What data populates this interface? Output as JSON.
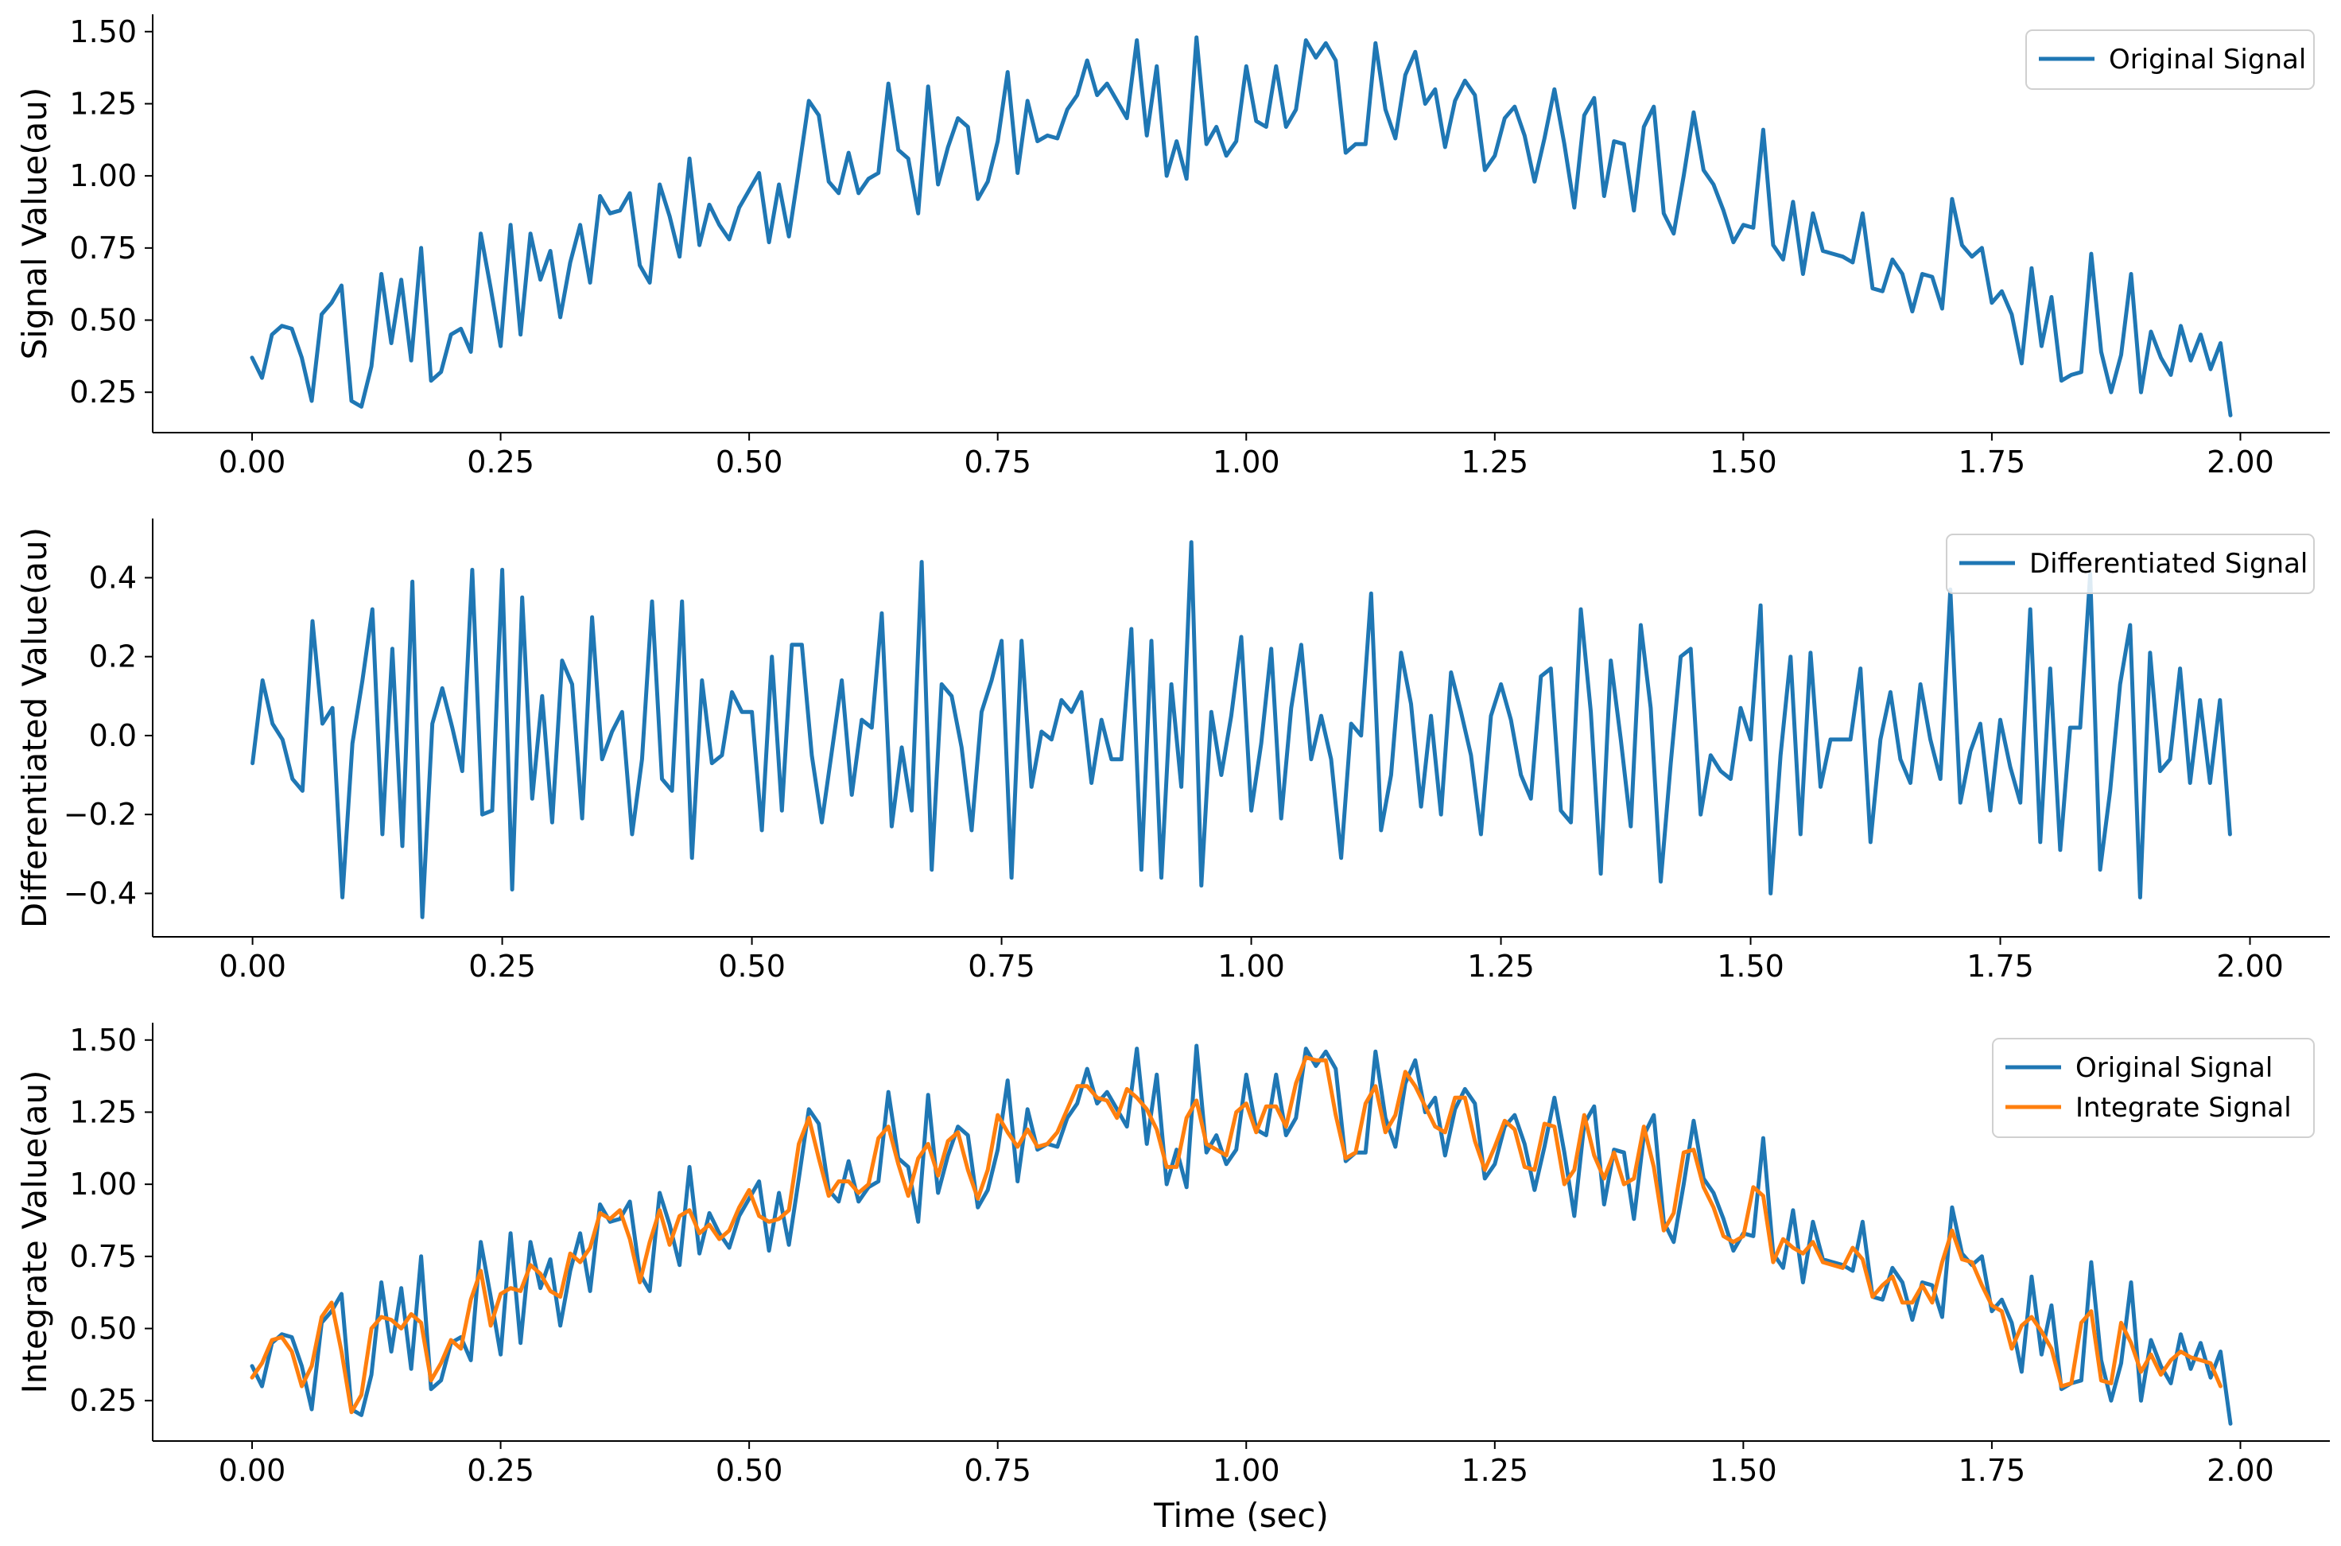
{
  "chart_data": [
    {
      "type": "line",
      "ylabel": "Signal Value(au)",
      "xlabel": "",
      "xlim": [
        -0.1,
        2.09
      ],
      "ylim": [
        0.11,
        1.56
      ],
      "xticks": [
        "0.00",
        "0.25",
        "0.50",
        "0.75",
        "1.00",
        "1.25",
        "1.50",
        "1.75",
        "2.00"
      ],
      "yticks": [
        "0.25",
        "0.50",
        "0.75",
        "1.00",
        "1.25",
        "1.50"
      ],
      "legend_position": "top-right",
      "series": [
        {
          "name": "Original Signal",
          "color": "#1f77b4",
          "dt": 0.01,
          "values": [
            0.37,
            0.3,
            0.45,
            0.48,
            0.47,
            0.37,
            0.22,
            0.52,
            0.56,
            0.62,
            0.22,
            0.2,
            0.34,
            0.66,
            0.42,
            0.64,
            0.36,
            0.75,
            0.29,
            0.32,
            0.45,
            0.47,
            0.39,
            0.8,
            0.61,
            0.41,
            0.83,
            0.45,
            0.8,
            0.64,
            0.74,
            0.51,
            0.7,
            0.83,
            0.63,
            0.93,
            0.87,
            0.88,
            0.94,
            0.69,
            0.63,
            0.97,
            0.86,
            0.72,
            1.06,
            0.76,
            0.9,
            0.83,
            0.78,
            0.89,
            0.95,
            1.01,
            0.77,
            0.97,
            0.79,
            1.02,
            1.26,
            1.21,
            0.98,
            0.94,
            1.08,
            0.94,
            0.99,
            1.01,
            1.32,
            1.09,
            1.06,
            0.87,
            1.31,
            0.97,
            1.1,
            1.2,
            1.17,
            0.92,
            0.98,
            1.12,
            1.36,
            1.01,
            1.26,
            1.12,
            1.14,
            1.13,
            1.23,
            1.28,
            1.4,
            1.28,
            1.32,
            1.26,
            1.2,
            1.47,
            1.14,
            1.38,
            1.0,
            1.12,
            0.99,
            1.48,
            1.11,
            1.17,
            1.07,
            1.12,
            1.38,
            1.19,
            1.17,
            1.38,
            1.17,
            1.23,
            1.47,
            1.41,
            1.46,
            1.4,
            1.08,
            1.11,
            1.11,
            1.46,
            1.23,
            1.13,
            1.35,
            1.43,
            1.25,
            1.3,
            1.1,
            1.26,
            1.33,
            1.28,
            1.02,
            1.07,
            1.2,
            1.24,
            1.14,
            0.98,
            1.13,
            1.3,
            1.11,
            0.89,
            1.21,
            1.27,
            0.93,
            1.12,
            1.11,
            0.88,
            1.17,
            1.24,
            0.87,
            0.8,
            1.0,
            1.22,
            1.02,
            0.97,
            0.88,
            0.77,
            0.83,
            0.82,
            1.16,
            0.76,
            0.71,
            0.91,
            0.66,
            0.87,
            0.74,
            0.73,
            0.72,
            0.7,
            0.87,
            0.61,
            0.6,
            0.71,
            0.66,
            0.53,
            0.66,
            0.65,
            0.54,
            0.92,
            0.76,
            0.72,
            0.75,
            0.56,
            0.6,
            0.52,
            0.35,
            0.68,
            0.41,
            0.58,
            0.29,
            0.31,
            0.32,
            0.73,
            0.39,
            0.25,
            0.38,
            0.66,
            0.25,
            0.46,
            0.37,
            0.31,
            0.48,
            0.36,
            0.45,
            0.33,
            0.42,
            0.17
          ]
        }
      ]
    },
    {
      "type": "line",
      "ylabel": "Differentiated Value(au)",
      "xlabel": "",
      "xlim": [
        -0.1,
        2.08
      ],
      "ylim": [
        -0.51,
        0.55
      ],
      "xticks": [
        "0.00",
        "0.25",
        "0.50",
        "0.75",
        "1.00",
        "1.25",
        "1.50",
        "1.75",
        "2.00"
      ],
      "yticks": [
        "−0.4",
        "−0.2",
        "0.0",
        "0.2",
        "0.4"
      ],
      "legend_position": "top-right",
      "series": [
        {
          "name": "Differentiated Signal",
          "color": "#1f77b4",
          "dt": 0.01,
          "values": [
            -0.07,
            0.14,
            0.03,
            -0.01,
            -0.11,
            -0.14,
            0.29,
            0.03,
            0.07,
            -0.41,
            -0.02,
            0.14,
            0.32,
            -0.25,
            0.22,
            -0.28,
            0.39,
            -0.46,
            0.03,
            0.12,
            0.02,
            -0.09,
            0.42,
            -0.2,
            -0.19,
            0.42,
            -0.39,
            0.35,
            -0.16,
            0.1,
            -0.22,
            0.19,
            0.13,
            -0.21,
            0.3,
            -0.06,
            0.01,
            0.06,
            -0.25,
            -0.06,
            0.34,
            -0.11,
            -0.14,
            0.34,
            -0.31,
            0.14,
            -0.07,
            -0.05,
            0.11,
            0.06,
            0.06,
            -0.24,
            0.2,
            -0.19,
            0.23,
            0.23,
            -0.05,
            -0.22,
            -0.04,
            0.14,
            -0.15,
            0.04,
            0.02,
            0.31,
            -0.23,
            -0.03,
            -0.19,
            0.44,
            -0.34,
            0.13,
            0.1,
            -0.03,
            -0.24,
            0.06,
            0.14,
            0.24,
            -0.36,
            0.24,
            -0.13,
            0.01,
            -0.01,
            0.09,
            0.06,
            0.11,
            -0.12,
            0.04,
            -0.06,
            -0.06,
            0.27,
            -0.34,
            0.24,
            -0.36,
            0.13,
            -0.13,
            0.49,
            -0.38,
            0.06,
            -0.1,
            0.05,
            0.25,
            -0.19,
            -0.02,
            0.22,
            -0.21,
            0.07,
            0.23,
            -0.06,
            0.05,
            -0.06,
            -0.31,
            0.03,
            0.0,
            0.36,
            -0.24,
            -0.1,
            0.21,
            0.08,
            -0.18,
            0.05,
            -0.2,
            0.16,
            0.06,
            -0.05,
            -0.25,
            0.05,
            0.13,
            0.04,
            -0.1,
            -0.16,
            0.15,
            0.17,
            -0.19,
            -0.22,
            0.32,
            0.06,
            -0.35,
            0.19,
            -0.01,
            -0.23,
            0.28,
            0.07,
            -0.37,
            -0.07,
            0.2,
            0.22,
            -0.2,
            -0.05,
            -0.09,
            -0.11,
            0.07,
            -0.01,
            0.33,
            -0.4,
            -0.05,
            0.2,
            -0.25,
            0.21,
            -0.13,
            -0.01,
            -0.01,
            -0.01,
            0.17,
            -0.27,
            -0.01,
            0.11,
            -0.06,
            -0.12,
            0.13,
            -0.01,
            -0.11,
            0.37,
            -0.17,
            -0.04,
            0.03,
            -0.19,
            0.04,
            -0.08,
            -0.17,
            0.32,
            -0.27,
            0.17,
            -0.29,
            0.02,
            0.02,
            0.41,
            -0.34,
            -0.14,
            0.13,
            0.28,
            -0.41,
            0.21,
            -0.09,
            -0.06,
            0.17,
            -0.12,
            0.09,
            -0.12,
            0.09,
            -0.25
          ]
        }
      ]
    },
    {
      "type": "line",
      "ylabel": "Integrate Value(au)",
      "xlabel": "Time (sec)",
      "xlim": [
        -0.1,
        2.09
      ],
      "ylim": [
        0.11,
        1.56
      ],
      "xticks": [
        "0.00",
        "0.25",
        "0.50",
        "0.75",
        "1.00",
        "1.25",
        "1.50",
        "1.75",
        "2.00"
      ],
      "yticks": [
        "0.25",
        "0.50",
        "0.75",
        "1.00",
        "1.25",
        "1.50"
      ],
      "legend_position": "top-right",
      "series": [
        {
          "name": "Original Signal",
          "color": "#1f77b4",
          "dt": 0.01,
          "values": [
            0.37,
            0.3,
            0.45,
            0.48,
            0.47,
            0.37,
            0.22,
            0.52,
            0.56,
            0.62,
            0.22,
            0.2,
            0.34,
            0.66,
            0.42,
            0.64,
            0.36,
            0.75,
            0.29,
            0.32,
            0.45,
            0.47,
            0.39,
            0.8,
            0.61,
            0.41,
            0.83,
            0.45,
            0.8,
            0.64,
            0.74,
            0.51,
            0.7,
            0.83,
            0.63,
            0.93,
            0.87,
            0.88,
            0.94,
            0.69,
            0.63,
            0.97,
            0.86,
            0.72,
            1.06,
            0.76,
            0.9,
            0.83,
            0.78,
            0.89,
            0.95,
            1.01,
            0.77,
            0.97,
            0.79,
            1.02,
            1.26,
            1.21,
            0.98,
            0.94,
            1.08,
            0.94,
            0.99,
            1.01,
            1.32,
            1.09,
            1.06,
            0.87,
            1.31,
            0.97,
            1.1,
            1.2,
            1.17,
            0.92,
            0.98,
            1.12,
            1.36,
            1.01,
            1.26,
            1.12,
            1.14,
            1.13,
            1.23,
            1.28,
            1.4,
            1.28,
            1.32,
            1.26,
            1.2,
            1.47,
            1.14,
            1.38,
            1.0,
            1.12,
            0.99,
            1.48,
            1.11,
            1.17,
            1.07,
            1.12,
            1.38,
            1.19,
            1.17,
            1.38,
            1.17,
            1.23,
            1.47,
            1.41,
            1.46,
            1.4,
            1.08,
            1.11,
            1.11,
            1.46,
            1.23,
            1.13,
            1.35,
            1.43,
            1.25,
            1.3,
            1.1,
            1.26,
            1.33,
            1.28,
            1.02,
            1.07,
            1.2,
            1.24,
            1.14,
            0.98,
            1.13,
            1.3,
            1.11,
            0.89,
            1.21,
            1.27,
            0.93,
            1.12,
            1.11,
            0.88,
            1.17,
            1.24,
            0.87,
            0.8,
            1.0,
            1.22,
            1.02,
            0.97,
            0.88,
            0.77,
            0.83,
            0.82,
            1.16,
            0.76,
            0.71,
            0.91,
            0.66,
            0.87,
            0.74,
            0.73,
            0.72,
            0.7,
            0.87,
            0.61,
            0.6,
            0.71,
            0.66,
            0.53,
            0.66,
            0.65,
            0.54,
            0.92,
            0.76,
            0.72,
            0.75,
            0.56,
            0.6,
            0.52,
            0.35,
            0.68,
            0.41,
            0.58,
            0.29,
            0.31,
            0.32,
            0.73,
            0.39,
            0.25,
            0.38,
            0.66,
            0.25,
            0.46,
            0.37,
            0.31,
            0.48,
            0.36,
            0.45,
            0.33,
            0.42,
            0.17
          ]
        },
        {
          "name": "Integrate Signal",
          "color": "#ff7f0e",
          "dt": 0.01,
          "values": [
            0.33,
            0.38,
            0.46,
            0.47,
            0.42,
            0.3,
            0.37,
            0.54,
            0.59,
            0.42,
            0.21,
            0.27,
            0.5,
            0.54,
            0.53,
            0.5,
            0.55,
            0.52,
            0.32,
            0.38,
            0.46,
            0.43,
            0.6,
            0.7,
            0.51,
            0.62,
            0.64,
            0.63,
            0.72,
            0.69,
            0.63,
            0.61,
            0.76,
            0.73,
            0.78,
            0.9,
            0.88,
            0.91,
            0.81,
            0.66,
            0.8,
            0.91,
            0.79,
            0.89,
            0.91,
            0.83,
            0.86,
            0.81,
            0.84,
            0.92,
            0.98,
            0.89,
            0.87,
            0.88,
            0.91,
            1.14,
            1.23,
            1.09,
            0.96,
            1.01,
            1.01,
            0.97,
            1.0,
            1.16,
            1.2,
            1.07,
            0.96,
            1.09,
            1.14,
            1.03,
            1.15,
            1.18,
            1.05,
            0.95,
            1.05,
            1.24,
            1.18,
            1.13,
            1.19,
            1.13,
            1.14,
            1.18,
            1.26,
            1.34,
            1.34,
            1.3,
            1.29,
            1.23,
            1.33,
            1.3,
            1.26,
            1.19,
            1.06,
            1.06,
            1.23,
            1.29,
            1.14,
            1.12,
            1.1,
            1.25,
            1.28,
            1.18,
            1.27,
            1.27,
            1.2,
            1.35,
            1.44,
            1.43,
            1.43,
            1.24,
            1.09,
            1.11,
            1.28,
            1.34,
            1.18,
            1.24,
            1.39,
            1.34,
            1.27,
            1.2,
            1.18,
            1.3,
            1.3,
            1.15,
            1.05,
            1.13,
            1.22,
            1.19,
            1.06,
            1.05,
            1.21,
            1.2,
            1.0,
            1.05,
            1.24,
            1.1,
            1.02,
            1.11,
            1.0,
            1.02,
            1.2,
            1.06,
            0.84,
            0.9,
            1.11,
            1.12,
            0.99,
            0.92,
            0.82,
            0.8,
            0.82,
            0.99,
            0.96,
            0.73,
            0.81,
            0.78,
            0.76,
            0.8,
            0.73,
            0.72,
            0.71,
            0.78,
            0.74,
            0.61,
            0.65,
            0.68,
            0.59,
            0.59,
            0.65,
            0.59,
            0.73,
            0.84,
            0.74,
            0.73,
            0.65,
            0.58,
            0.56,
            0.43,
            0.51,
            0.54,
            0.49,
            0.43,
            0.3,
            0.31,
            0.52,
            0.56,
            0.32,
            0.31,
            0.52,
            0.45,
            0.35,
            0.41,
            0.34,
            0.39,
            0.42,
            0.4,
            0.39,
            0.38,
            0.3
          ]
        }
      ]
    }
  ]
}
